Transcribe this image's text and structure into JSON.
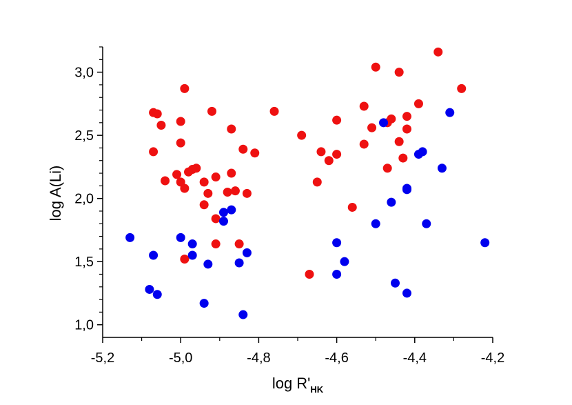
{
  "chart_data": {
    "type": "scatter",
    "title": "",
    "xlabel": "log R'",
    "xlabel_subscript": "HK",
    "ylabel": "log A(Li)",
    "xlim": [
      -5.2,
      -4.2
    ],
    "ylim": [
      0.9,
      3.2
    ],
    "grid": false,
    "x_ticks": [
      -5.2,
      -5.0,
      -4.8,
      -4.6,
      -4.4,
      -4.2
    ],
    "x_tick_labels": [
      "-5,2",
      "-5,0",
      "-4,8",
      "-4,6",
      "-4,4",
      "-4,2"
    ],
    "y_ticks": [
      1.0,
      1.5,
      2.0,
      2.5,
      3.0
    ],
    "y_tick_labels": [
      "1,0",
      "1,5",
      "2,0",
      "2,5",
      "3,0"
    ],
    "series": [
      {
        "color": "#ee1111",
        "points": [
          [
            -4.99,
            2.87
          ],
          [
            -5.07,
            2.68
          ],
          [
            -5.06,
            2.67
          ],
          [
            -5.05,
            2.58
          ],
          [
            -5.0,
            2.61
          ],
          [
            -5.0,
            2.44
          ],
          [
            -5.07,
            2.37
          ],
          [
            -4.92,
            2.69
          ],
          [
            -4.87,
            2.55
          ],
          [
            -4.84,
            2.39
          ],
          [
            -4.81,
            2.36
          ],
          [
            -4.76,
            2.69
          ],
          [
            -4.96,
            2.24
          ],
          [
            -4.97,
            2.23
          ],
          [
            -4.98,
            2.21
          ],
          [
            -5.01,
            2.19
          ],
          [
            -5.04,
            2.14
          ],
          [
            -5.0,
            2.13
          ],
          [
            -4.99,
            2.08
          ],
          [
            -4.94,
            2.13
          ],
          [
            -4.91,
            2.17
          ],
          [
            -4.87,
            2.2
          ],
          [
            -4.93,
            2.04
          ],
          [
            -4.88,
            2.05
          ],
          [
            -4.86,
            2.06
          ],
          [
            -4.83,
            2.04
          ],
          [
            -4.94,
            1.95
          ],
          [
            -4.91,
            1.84
          ],
          [
            -4.91,
            1.64
          ],
          [
            -4.85,
            1.64
          ],
          [
            -4.99,
            1.52
          ],
          [
            -4.69,
            2.5
          ],
          [
            -4.64,
            2.37
          ],
          [
            -4.62,
            2.3
          ],
          [
            -4.6,
            2.62
          ],
          [
            -4.6,
            2.35
          ],
          [
            -4.65,
            2.13
          ],
          [
            -4.67,
            1.4
          ],
          [
            -4.56,
            1.93
          ],
          [
            -4.53,
            2.73
          ],
          [
            -4.51,
            2.56
          ],
          [
            -4.53,
            2.43
          ],
          [
            -4.5,
            3.04
          ],
          [
            -4.44,
            3.0
          ],
          [
            -4.34,
            3.16
          ],
          [
            -4.28,
            2.87
          ],
          [
            -4.39,
            2.75
          ],
          [
            -4.42,
            2.65
          ],
          [
            -4.46,
            2.63
          ],
          [
            -4.47,
            2.6
          ],
          [
            -4.42,
            2.55
          ],
          [
            -4.44,
            2.45
          ],
          [
            -4.43,
            2.32
          ],
          [
            -4.47,
            2.24
          ]
        ]
      },
      {
        "color": "#0000ee",
        "points": [
          [
            -5.13,
            1.69
          ],
          [
            -5.07,
            1.55
          ],
          [
            -5.0,
            1.69
          ],
          [
            -4.97,
            1.64
          ],
          [
            -4.97,
            1.55
          ],
          [
            -4.93,
            1.48
          ],
          [
            -4.89,
            1.89
          ],
          [
            -4.87,
            1.91
          ],
          [
            -4.89,
            1.82
          ],
          [
            -4.85,
            1.49
          ],
          [
            -4.83,
            1.57
          ],
          [
            -5.08,
            1.28
          ],
          [
            -5.06,
            1.24
          ],
          [
            -4.94,
            1.17
          ],
          [
            -4.84,
            1.08
          ],
          [
            -4.6,
            1.65
          ],
          [
            -4.58,
            1.5
          ],
          [
            -4.6,
            1.4
          ],
          [
            -4.48,
            2.6
          ],
          [
            -4.31,
            2.68
          ],
          [
            -4.38,
            2.37
          ],
          [
            -4.39,
            2.35
          ],
          [
            -4.33,
            2.24
          ],
          [
            -4.42,
            2.08
          ],
          [
            -4.42,
            2.07
          ],
          [
            -4.46,
            1.97
          ],
          [
            -4.5,
            1.8
          ],
          [
            -4.37,
            1.8
          ],
          [
            -4.22,
            1.65
          ],
          [
            -4.45,
            1.33
          ],
          [
            -4.42,
            1.25
          ]
        ]
      }
    ]
  }
}
